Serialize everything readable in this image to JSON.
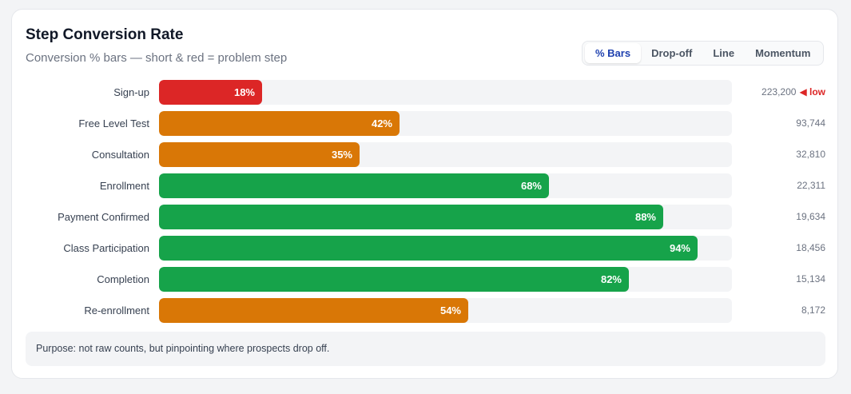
{
  "header": {
    "title": "Step Conversion Rate",
    "subtitle": "Conversion % bars — short & red = problem step"
  },
  "tabs": [
    {
      "label": "% Bars",
      "active": true
    },
    {
      "label": "Drop-off",
      "active": false
    },
    {
      "label": "Line",
      "active": false
    },
    {
      "label": "Momentum",
      "active": false
    }
  ],
  "colors": {
    "red": "#dc2626",
    "orange": "#d97706",
    "green": "#16a34a"
  },
  "chart_data": {
    "type": "bar",
    "orientation": "horizontal",
    "categories": [
      "Sign-up",
      "Free Level Test",
      "Consultation",
      "Enrollment",
      "Payment Confirmed",
      "Class Participation",
      "Completion",
      "Re-enrollment"
    ],
    "values": [
      18,
      42,
      35,
      68,
      88,
      94,
      82,
      54
    ],
    "value_labels": [
      "18%",
      "42%",
      "35%",
      "68%",
      "88%",
      "94%",
      "82%",
      "54%"
    ],
    "bar_colors": [
      "red",
      "orange",
      "orange",
      "green",
      "green",
      "green",
      "green",
      "orange"
    ],
    "counts": [
      "223,200",
      "93,744",
      "32,810",
      "22,311",
      "19,634",
      "18,456",
      "15,134",
      "8,172"
    ],
    "flags": [
      "◀ low",
      "",
      "",
      "",
      "",
      "",
      "",
      ""
    ],
    "xlim": [
      0,
      100
    ]
  },
  "note": {
    "text": "Purpose: not raw counts, but pinpointing where prospects drop off."
  }
}
